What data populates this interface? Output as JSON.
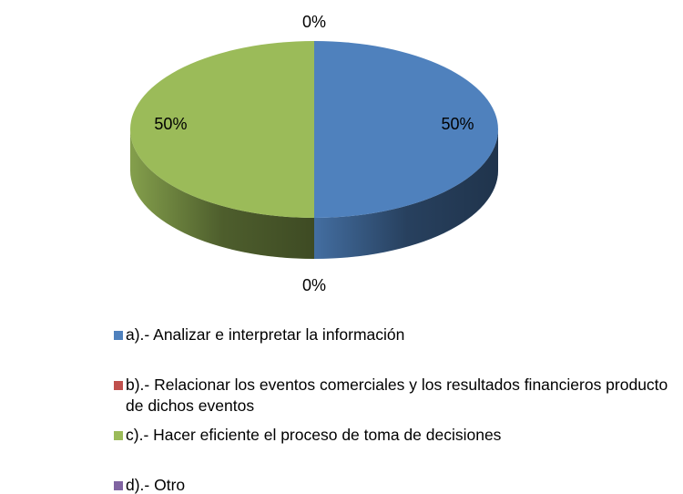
{
  "chart_data": {
    "type": "pie",
    "categories": [
      "a).- Analizar e interpretar la información",
      "b).- Relacionar los eventos comerciales y los resultados financieros producto de dichos eventos",
      "c).- Hacer eficiente el proceso de toma de decisiones",
      "d).- Otro"
    ],
    "values": [
      50,
      0,
      50,
      0
    ],
    "value_labels": [
      "50%",
      "0%",
      "50%",
      "0%"
    ],
    "colors": [
      "#4f81bd",
      "#c0504d",
      "#9bbb59",
      "#8064a2"
    ],
    "legend": "bottom"
  }
}
